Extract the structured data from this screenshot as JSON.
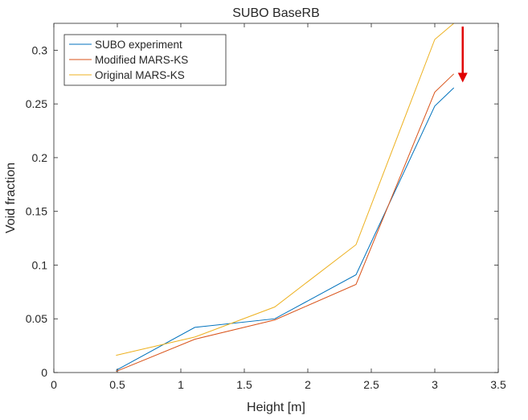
{
  "chart_data": {
    "type": "line",
    "title": "SUBO BaseRB",
    "xlabel": "Height [m]",
    "ylabel": "Void fraction",
    "xlim": [
      0,
      3.5
    ],
    "ylim": [
      0,
      0.325
    ],
    "xticks": [
      0,
      0.5,
      1,
      1.5,
      2,
      2.5,
      3,
      3.5
    ],
    "xtick_labels": [
      "0",
      "0.5",
      "1",
      "1.5",
      "2",
      "2.5",
      "3",
      "3.5"
    ],
    "yticks": [
      0,
      0.05,
      0.1,
      0.15,
      0.2,
      0.25,
      0.3
    ],
    "ytick_labels": [
      "0",
      "0.05",
      "0.1",
      "0.15",
      "0.2",
      "0.25",
      "0.3"
    ],
    "grid": false,
    "legend_position": "top-left",
    "series": [
      {
        "name": "SUBO experiment",
        "color": "#0072BD",
        "x": [
          0.49,
          1.11,
          1.74,
          2.38,
          3.0,
          3.15
        ],
        "y": [
          0.002,
          0.042,
          0.05,
          0.091,
          0.248,
          0.265
        ]
      },
      {
        "name": "Modified MARS-KS",
        "color": "#D95319",
        "x": [
          0.49,
          1.11,
          1.74,
          2.38,
          3.0,
          3.15
        ],
        "y": [
          0.001,
          0.031,
          0.049,
          0.082,
          0.261,
          0.278
        ]
      },
      {
        "name": "Original MARS-KS",
        "color": "#EDB120",
        "x": [
          0.49,
          1.11,
          1.74,
          2.38,
          3.0,
          3.15
        ],
        "y": [
          0.016,
          0.033,
          0.061,
          0.119,
          0.31,
          0.325
        ]
      }
    ],
    "annotations": [
      {
        "type": "arrow",
        "color": "#E00000",
        "x": 3.22,
        "y_from": 0.322,
        "y_to": 0.27
      }
    ]
  }
}
